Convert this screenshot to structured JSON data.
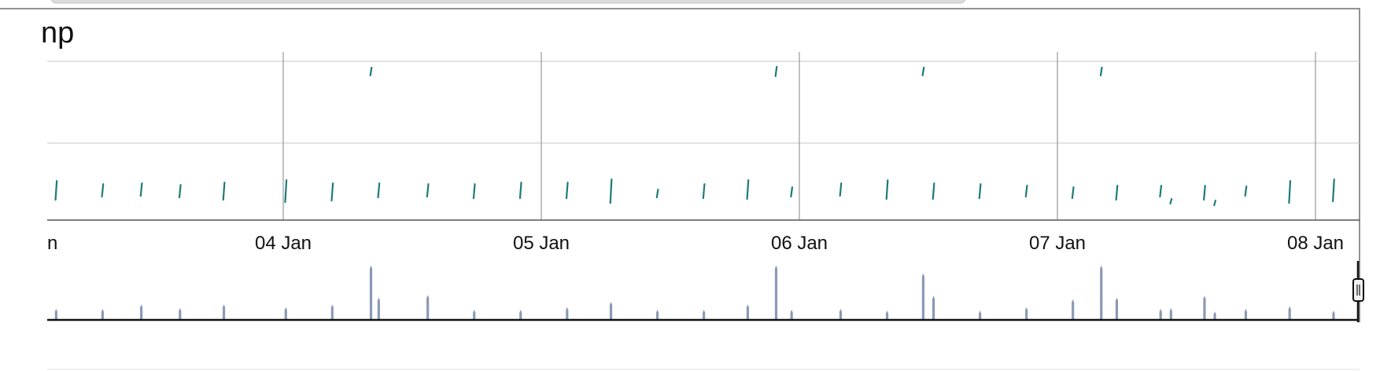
{
  "chart_data": {
    "type": "scatter",
    "title": "np",
    "x_axis": {
      "tick_labels": [
        "n",
        "04 Jan",
        "05 Jan",
        "06 Jan",
        "07 Jan",
        "08 Jan"
      ],
      "grid": true
    },
    "y_axis": {
      "grid": true,
      "tick_labels": []
    },
    "colors": {
      "marks": "#1f7a7a",
      "navigator": "#8a9ab5",
      "grid": "#d0d0d0",
      "axis": "#555555"
    },
    "series": [
      {
        "marks": [
          {
            "x": 3.12,
            "y": 19.0,
            "len": 2.4
          },
          {
            "x": 3.3,
            "y": 19.0,
            "len": 1.6
          },
          {
            "x": 3.45,
            "y": 19.5,
            "len": 1.6
          },
          {
            "x": 3.6,
            "y": 18.5,
            "len": 1.6
          },
          {
            "x": 3.77,
            "y": 18.5,
            "len": 2.2
          },
          {
            "x": 4.01,
            "y": 18.5,
            "len": 2.8
          },
          {
            "x": 4.19,
            "y": 18.0,
            "len": 2.2
          },
          {
            "x": 4.34,
            "y": 95.0,
            "len": 1.0
          },
          {
            "x": 4.37,
            "y": 19.0,
            "len": 1.8
          },
          {
            "x": 4.56,
            "y": 19.0,
            "len": 1.6
          },
          {
            "x": 4.74,
            "y": 18.5,
            "len": 1.8
          },
          {
            "x": 4.92,
            "y": 19.0,
            "len": 2.0
          },
          {
            "x": 5.1,
            "y": 19.0,
            "len": 2.0
          },
          {
            "x": 5.27,
            "y": 18.5,
            "len": 3.0
          },
          {
            "x": 5.45,
            "y": 17.0,
            "len": 1.0
          },
          {
            "x": 5.63,
            "y": 18.5,
            "len": 1.8
          },
          {
            "x": 5.8,
            "y": 19.5,
            "len": 2.4
          },
          {
            "x": 5.91,
            "y": 95.0,
            "len": 1.2
          },
          {
            "x": 5.97,
            "y": 18.0,
            "len": 1.2
          },
          {
            "x": 6.16,
            "y": 19.5,
            "len": 1.6
          },
          {
            "x": 6.34,
            "y": 19.5,
            "len": 2.4
          },
          {
            "x": 6.48,
            "y": 95.0,
            "len": 1.0
          },
          {
            "x": 6.52,
            "y": 18.5,
            "len": 2.0
          },
          {
            "x": 6.7,
            "y": 18.5,
            "len": 1.8
          },
          {
            "x": 6.88,
            "y": 18.5,
            "len": 1.4
          },
          {
            "x": 7.06,
            "y": 17.5,
            "len": 1.4
          },
          {
            "x": 7.17,
            "y": 95.0,
            "len": 1.0
          },
          {
            "x": 7.23,
            "y": 17.5,
            "len": 1.8
          },
          {
            "x": 7.4,
            "y": 18.5,
            "len": 1.4
          },
          {
            "x": 7.44,
            "y": 12.0,
            "len": 0.6
          },
          {
            "x": 7.57,
            "y": 17.5,
            "len": 1.8
          },
          {
            "x": 7.61,
            "y": 11.0,
            "len": 0.6
          },
          {
            "x": 7.73,
            "y": 18.5,
            "len": 1.2
          },
          {
            "x": 7.9,
            "y": 18.0,
            "len": 2.8
          },
          {
            "x": 8.07,
            "y": 19.0,
            "len": 2.8
          }
        ]
      }
    ],
    "navigator": {
      "bars": [
        {
          "x": 3.12,
          "h": 0.12
        },
        {
          "x": 3.3,
          "h": 0.12
        },
        {
          "x": 3.45,
          "h": 0.17
        },
        {
          "x": 3.6,
          "h": 0.13
        },
        {
          "x": 3.77,
          "h": 0.17
        },
        {
          "x": 4.01,
          "h": 0.14
        },
        {
          "x": 4.19,
          "h": 0.17
        },
        {
          "x": 4.34,
          "h": 0.62
        },
        {
          "x": 4.37,
          "h": 0.25
        },
        {
          "x": 4.56,
          "h": 0.28
        },
        {
          "x": 4.74,
          "h": 0.11
        },
        {
          "x": 4.92,
          "h": 0.11
        },
        {
          "x": 5.1,
          "h": 0.14
        },
        {
          "x": 5.27,
          "h": 0.2
        },
        {
          "x": 5.45,
          "h": 0.11
        },
        {
          "x": 5.63,
          "h": 0.11
        },
        {
          "x": 5.8,
          "h": 0.17
        },
        {
          "x": 5.91,
          "h": 0.62
        },
        {
          "x": 5.97,
          "h": 0.11
        },
        {
          "x": 6.16,
          "h": 0.12
        },
        {
          "x": 6.34,
          "h": 0.1
        },
        {
          "x": 6.48,
          "h": 0.53
        },
        {
          "x": 6.52,
          "h": 0.27
        },
        {
          "x": 6.7,
          "h": 0.1
        },
        {
          "x": 6.88,
          "h": 0.14
        },
        {
          "x": 7.06,
          "h": 0.23
        },
        {
          "x": 7.17,
          "h": 0.62
        },
        {
          "x": 7.23,
          "h": 0.25
        },
        {
          "x": 7.4,
          "h": 0.12
        },
        {
          "x": 7.44,
          "h": 0.13
        },
        {
          "x": 7.57,
          "h": 0.27
        },
        {
          "x": 7.61,
          "h": 0.09
        },
        {
          "x": 7.73,
          "h": 0.12
        },
        {
          "x": 7.9,
          "h": 0.15
        },
        {
          "x": 8.07,
          "h": 0.1
        }
      ]
    }
  }
}
